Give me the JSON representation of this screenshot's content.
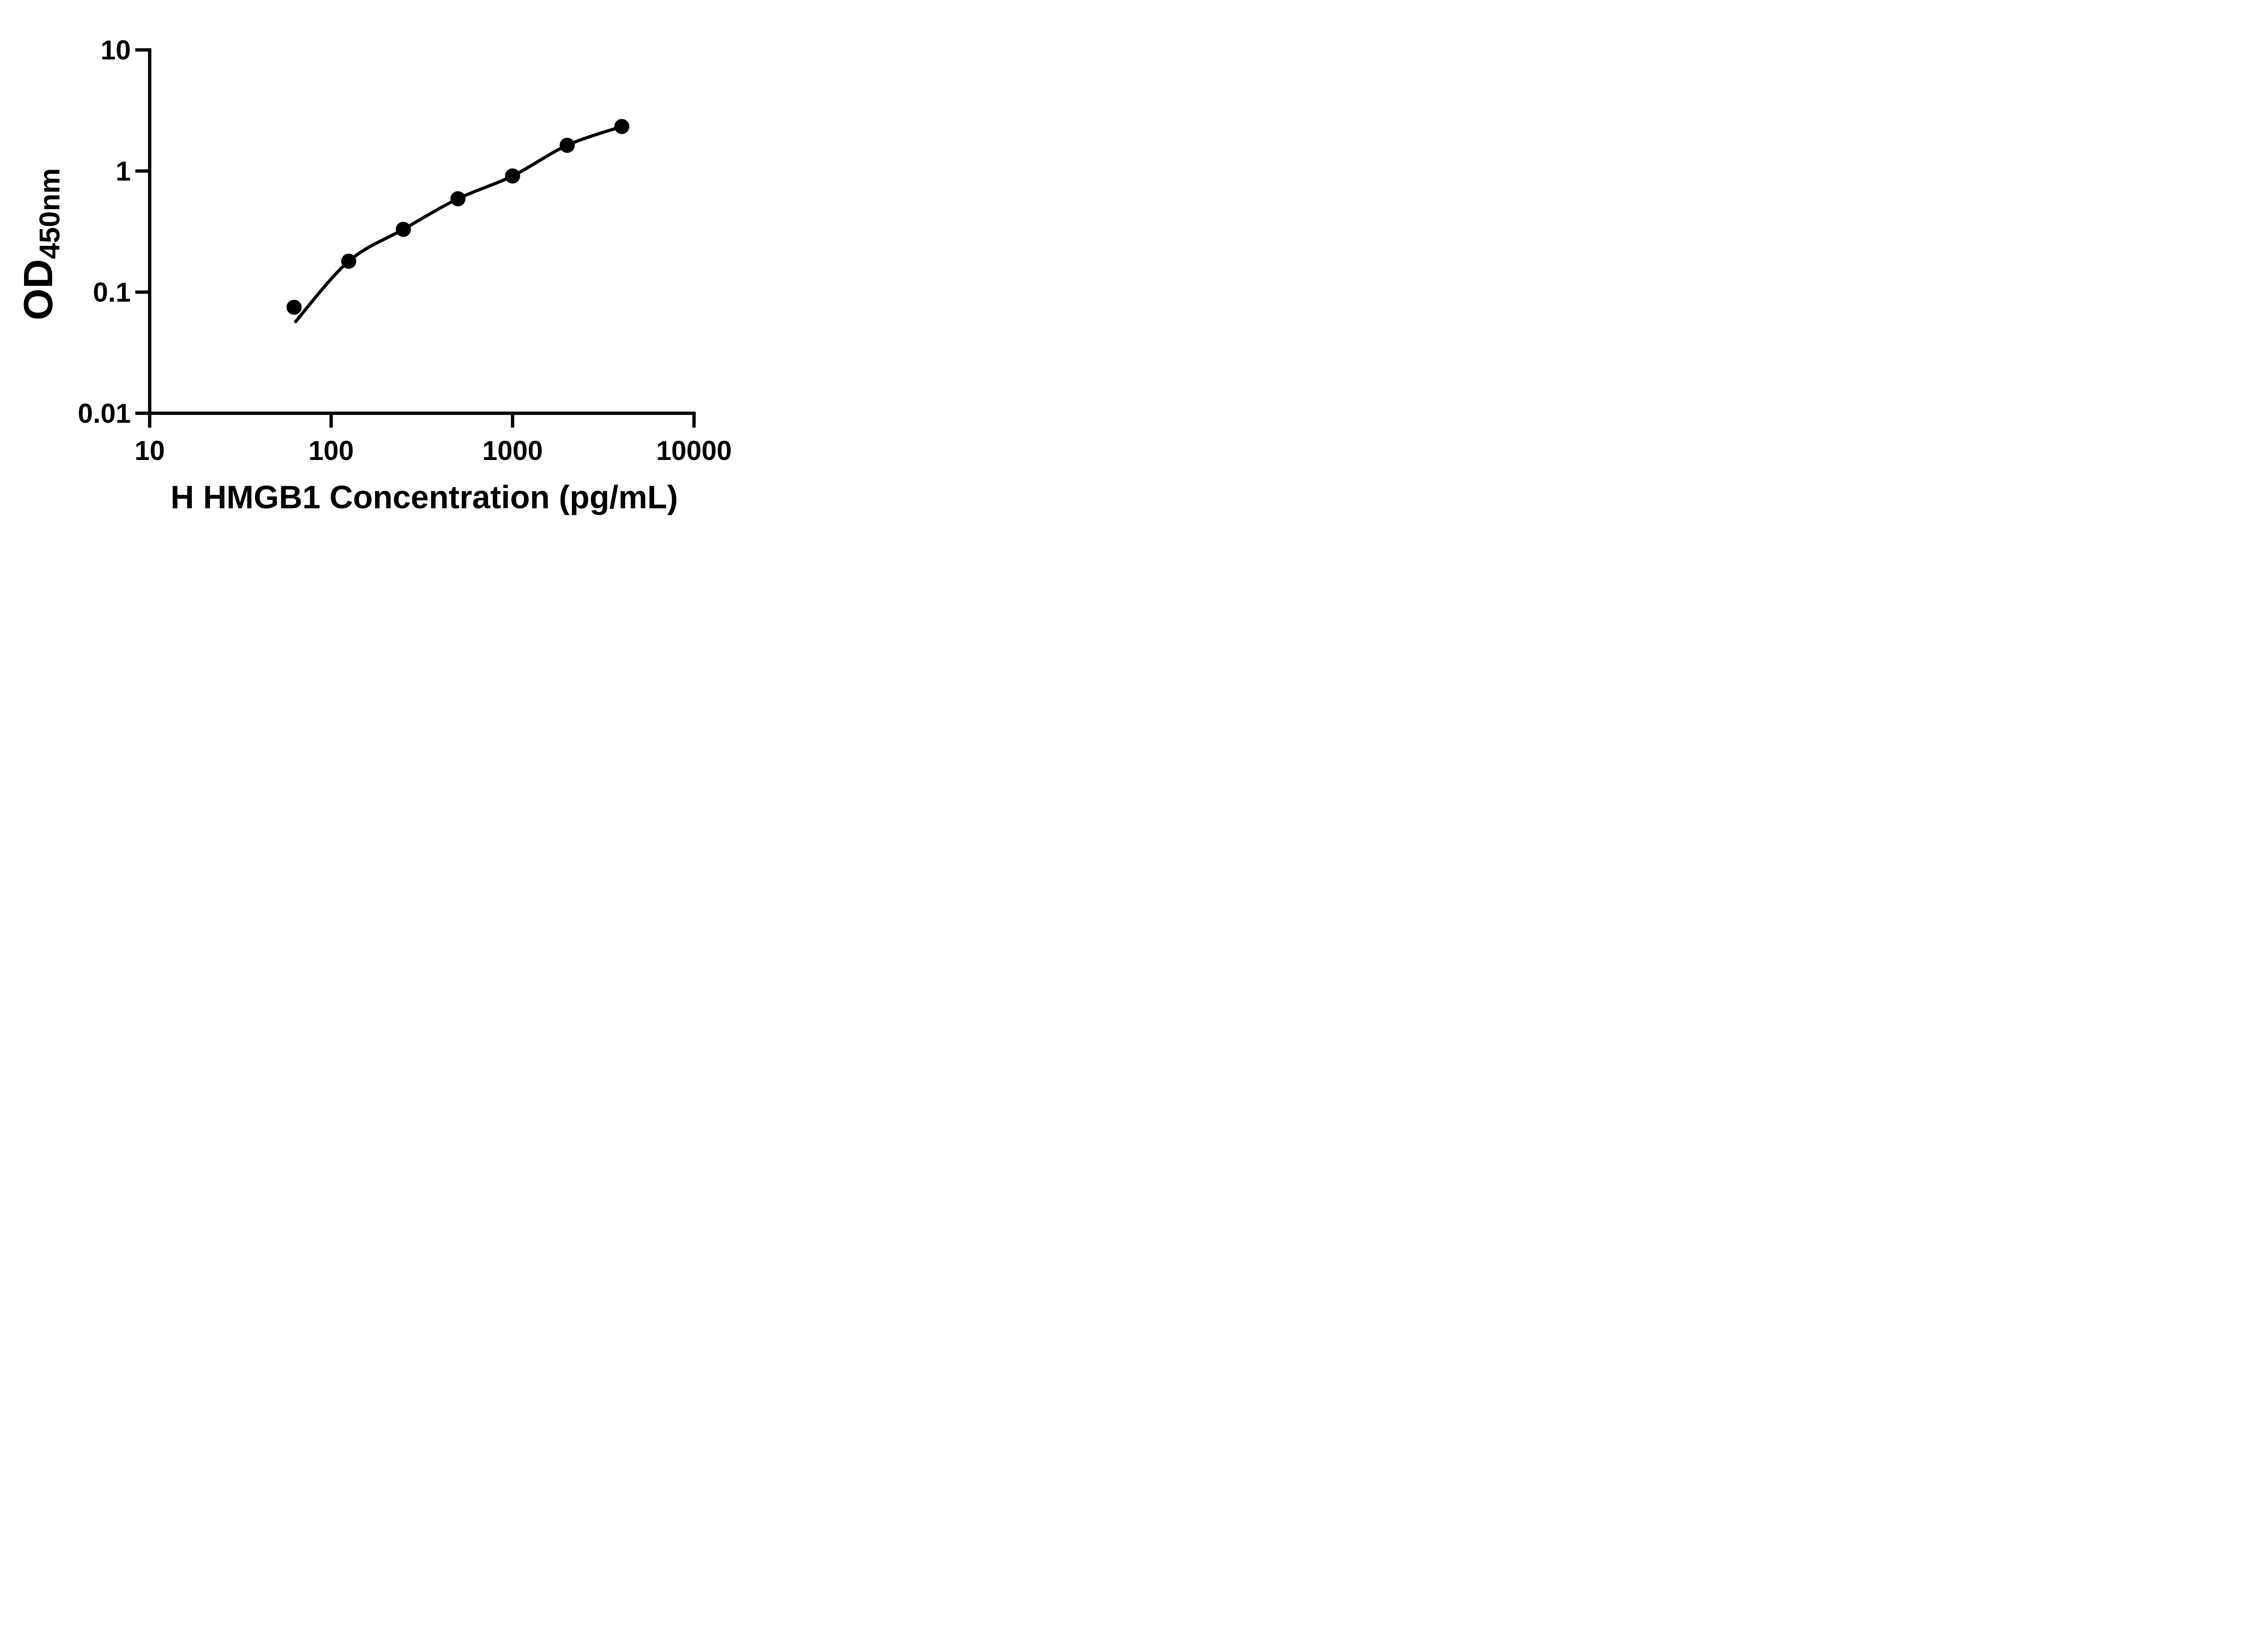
{
  "figure": {
    "background_color": "#ffffff",
    "ink_color": "#000000"
  },
  "chart_data": {
    "type": "scatter",
    "subtype": "ELISA standard curve, log-log axes with fitted curve",
    "title": "",
    "xlabel": "H HMGB1 Concentration (pg/mL)",
    "ylabel": "OD450nm",
    "ylabel_main": "OD",
    "ylabel_subscript": "450nm",
    "x_scale": "log10",
    "y_scale": "log10",
    "xlim": [
      10,
      10000
    ],
    "ylim": [
      0.01,
      10
    ],
    "grid": "off",
    "legend": "none",
    "x_ticks": [
      {
        "value": 10,
        "label": "10"
      },
      {
        "value": 100,
        "label": "100"
      },
      {
        "value": 1000,
        "label": "1000"
      },
      {
        "value": 10000,
        "label": "10000"
      }
    ],
    "y_ticks": [
      {
        "value": 10,
        "label": "10"
      },
      {
        "value": 1,
        "label": "1"
      },
      {
        "value": 0.1,
        "label": "0.1"
      },
      {
        "value": 0.01,
        "label": "0.01"
      }
    ],
    "series": [
      {
        "name": "standard-curve-points",
        "marker": "filled-circle",
        "color": "#000000",
        "x": [
          62.5,
          125,
          250,
          500,
          1000,
          2000,
          4000
        ],
        "y": [
          0.075,
          0.18,
          0.33,
          0.59,
          0.91,
          1.63,
          2.33
        ]
      }
    ],
    "fit_curve": {
      "style": "smooth fitted line",
      "color": "#000000",
      "start_point": {
        "x": 63,
        "y": 0.056
      },
      "passes_through_x": [
        125,
        250,
        500,
        1000,
        2000,
        4000
      ],
      "passes_through_y": [
        0.18,
        0.33,
        0.59,
        0.91,
        1.63,
        2.33
      ],
      "note": "curve begins just below the first data point and ends at the last point"
    }
  }
}
